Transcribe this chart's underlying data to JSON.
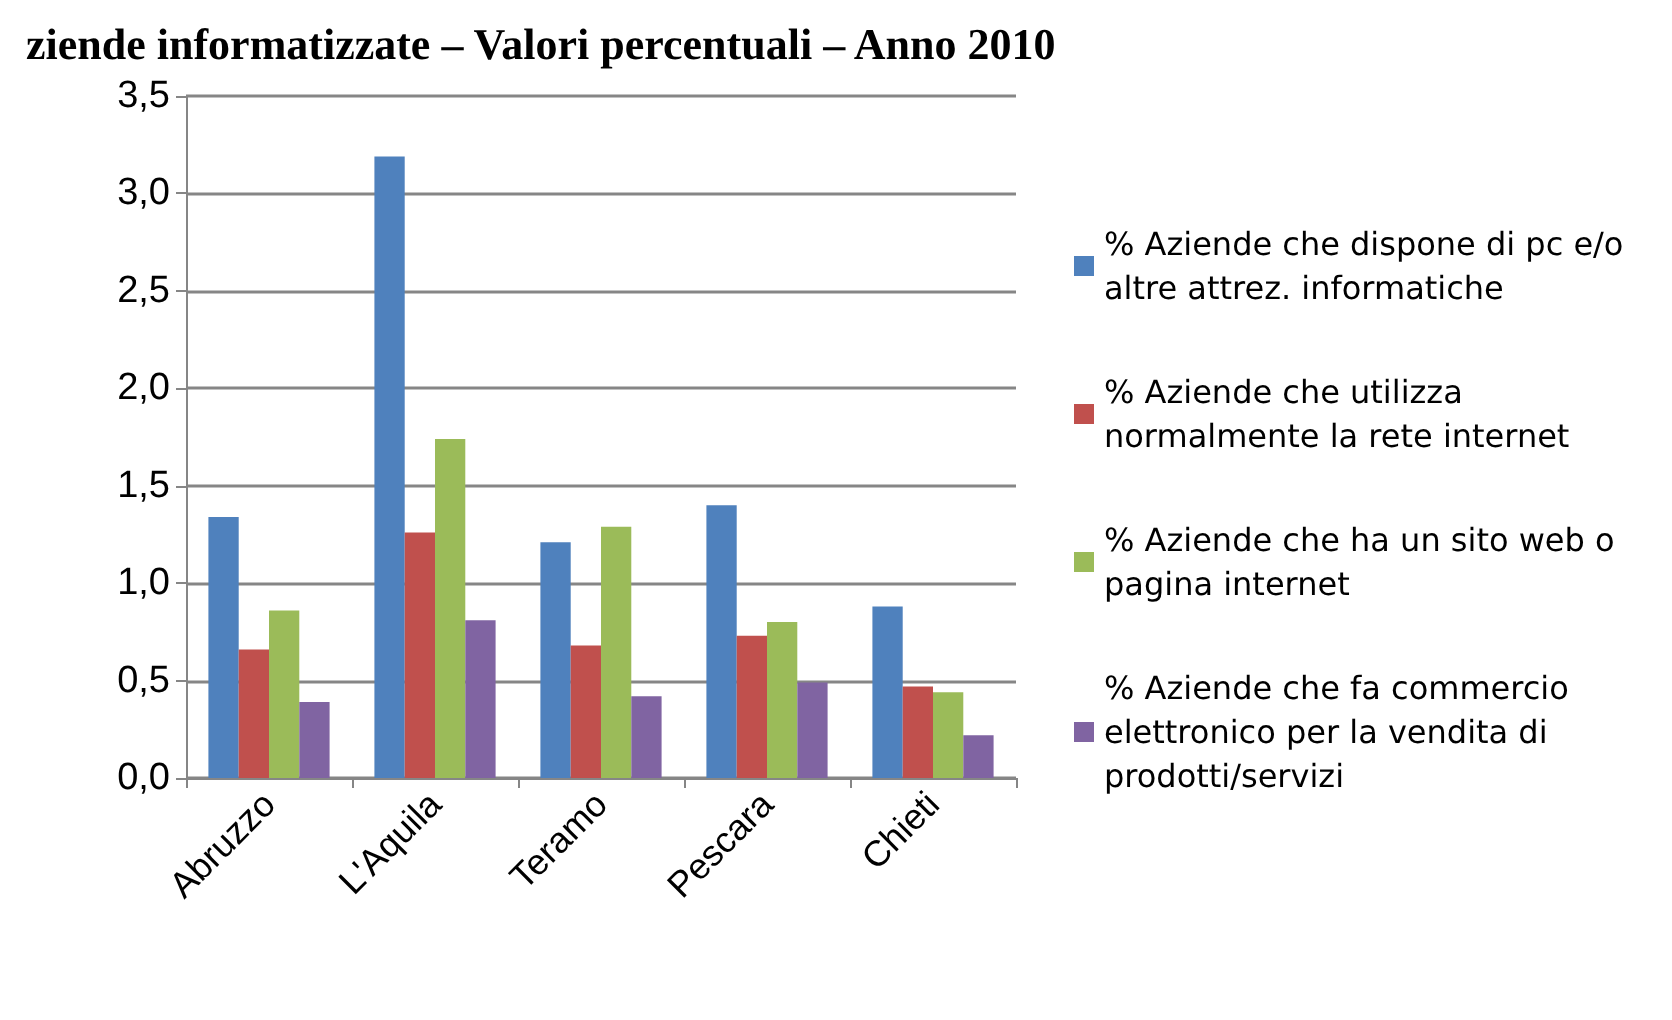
{
  "chart_data": {
    "type": "bar",
    "title": "ziende informatizzate – Valori percentuali – Anno 2010",
    "categories": [
      "Abruzzo",
      "L'Aquila",
      "Teramo",
      "Pescara",
      "Chieti"
    ],
    "series": [
      {
        "name": "% Aziende che dispone di pc e/o altre attrez. informatiche",
        "color": "#4f81bd",
        "values": [
          1.34,
          3.19,
          1.21,
          1.4,
          0.88
        ]
      },
      {
        "name": "% Aziende che utilizza normalmente la rete internet",
        "color": "#c0504d",
        "values": [
          0.66,
          1.26,
          0.68,
          0.73,
          0.47
        ]
      },
      {
        "name": "% Aziende che ha un sito web o pagina internet",
        "color": "#9bbb59",
        "values": [
          0.86,
          1.74,
          1.29,
          0.8,
          0.44
        ]
      },
      {
        "name": "% Aziende che fa commercio elettronico per la vendita di prodotti/servizi",
        "color": "#8064a2",
        "values": [
          0.39,
          0.81,
          0.42,
          0.49,
          0.22
        ]
      }
    ],
    "ylim": [
      0,
      3.5
    ],
    "yticks": [
      {
        "value": 0,
        "label": "0,0"
      },
      {
        "value": 0.5,
        "label": "0,5"
      },
      {
        "value": 1,
        "label": "1,0"
      },
      {
        "value": 1.5,
        "label": "1,5"
      },
      {
        "value": 2,
        "label": "2,0"
      },
      {
        "value": 2.5,
        "label": "2,5"
      },
      {
        "value": 3,
        "label": "3,0"
      },
      {
        "value": 3.5,
        "label": "3,5"
      }
    ],
    "grid": "y",
    "legend": "right"
  }
}
